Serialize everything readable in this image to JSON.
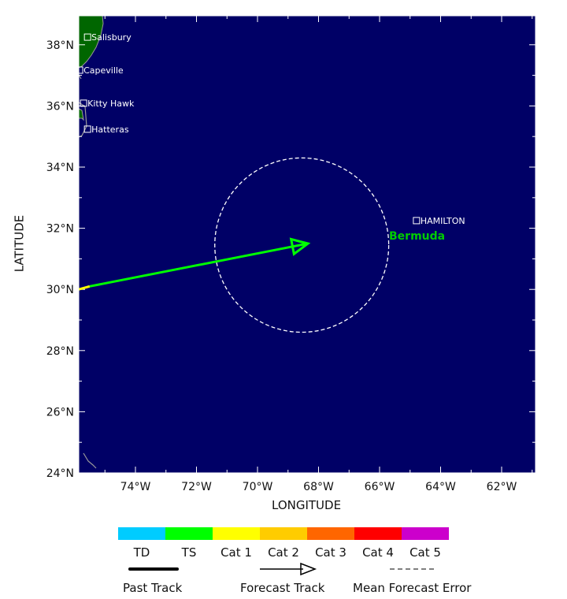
{
  "axes": {
    "xlabel": "LONGITUDE",
    "ylabel": "LATITUDE",
    "lat_ticks": [
      "24°N",
      "26°N",
      "28°N",
      "30°N",
      "32°N",
      "34°N",
      "36°N",
      "38°N"
    ],
    "lat_values": [
      24,
      26,
      28,
      30,
      32,
      34,
      36,
      38
    ],
    "lon_ticks": [
      "74°W",
      "72°W",
      "70°W",
      "68°W",
      "66°W",
      "64°W",
      "62°W"
    ],
    "lon_values": [
      74,
      72,
      70,
      68,
      66,
      64,
      62
    ]
  },
  "map": {
    "ocean_color": "#000066",
    "land_color": "#006600",
    "cities": [
      {
        "name": "Salisbury",
        "lat": 38.25,
        "lon": 75.57
      },
      {
        "name": "Capeville",
        "lat": 37.17,
        "lon": 75.83
      },
      {
        "name": "Kitty Hawk",
        "lat": 36.09,
        "lon": 75.7
      },
      {
        "name": "Hatteras",
        "lat": 35.24,
        "lon": 75.57
      },
      {
        "name": "HAMILTON",
        "lat": 32.25,
        "lon": 64.79
      }
    ],
    "region_label": "Bermuda",
    "region_label_color": "#00cc00"
  },
  "track": {
    "past_segment": {
      "category": "Cat 1",
      "color": "#ffff00",
      "from": [
        30.0,
        75.86
      ],
      "to": [
        30.1,
        75.5
      ]
    },
    "forecast_segment": {
      "category": "TS",
      "color": "#00ff00",
      "from": [
        30.1,
        75.5
      ],
      "to": [
        31.5,
        68.35
      ]
    },
    "error_circle": {
      "center": [
        31.45,
        68.55
      ],
      "radius_deg": 2.85
    }
  },
  "legend": {
    "categories": [
      {
        "label": "TD",
        "color": "#00ccff"
      },
      {
        "label": "TS",
        "color": "#00ff00"
      },
      {
        "label": "Cat 1",
        "color": "#ffff00"
      },
      {
        "label": "Cat 2",
        "color": "#ffcc00"
      },
      {
        "label": "Cat 3",
        "color": "#ff6600"
      },
      {
        "label": "Cat 4",
        "color": "#ff0000"
      },
      {
        "label": "Cat 5",
        "color": "#cc00cc"
      }
    ],
    "past_track": "Past Track",
    "forecast_track": "Forecast Track",
    "mean_error": "Mean Forecast Error"
  }
}
